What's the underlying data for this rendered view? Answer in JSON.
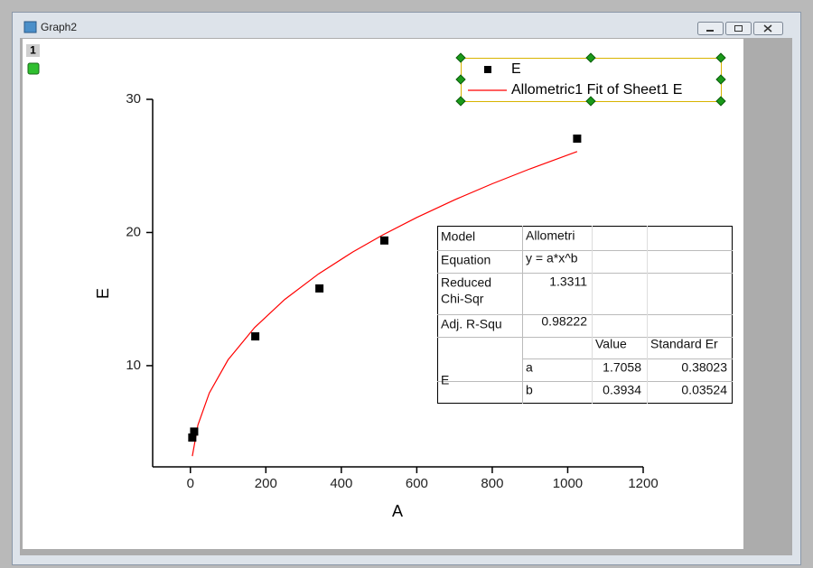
{
  "window": {
    "title": "Graph2",
    "layer": "1"
  },
  "chart_data": {
    "type": "scatter",
    "x_label": "A",
    "y_label": "E",
    "xlim": [
      -100,
      1200
    ],
    "xticks": [
      0,
      200,
      400,
      600,
      800,
      1000,
      1200
    ],
    "ylim": [
      2.4,
      30
    ],
    "yticks": [
      10,
      20,
      30
    ],
    "series": [
      {
        "name": "E",
        "color": "#000000",
        "marker": "square",
        "x": [
          5,
          10,
          172,
          342,
          514,
          1025
        ],
        "values": [
          4.6,
          5.05,
          12.2,
          15.8,
          19.4,
          27.05
        ]
      },
      {
        "name": "Allometric1 Fit of Sheet1 E",
        "color": "#ff0000",
        "marker": "line",
        "x": [
          5,
          20,
          50,
          100,
          170,
          250,
          340,
          430,
          510,
          600,
          700,
          800,
          900,
          1025
        ],
        "values": [
          3.21,
          5.54,
          7.95,
          10.44,
          12.86,
          14.97,
          16.9,
          18.53,
          19.82,
          21.13,
          22.45,
          23.66,
          24.78,
          26.08
        ]
      }
    ]
  },
  "fit_table": {
    "model": {
      "label": "Model",
      "value": "Allometri"
    },
    "equation": {
      "label": "Equation",
      "value": "y = a*x^b"
    },
    "chi": {
      "label": [
        "Reduced",
        "Chi-Sqr"
      ],
      "value": 1.3311
    },
    "r2": {
      "label": "Adj. R-Squ",
      "value": 0.98222
    },
    "header": [
      "Value",
      "Standard Er"
    ],
    "param_group": "E",
    "params": [
      [
        "a",
        1.7058,
        0.38023
      ],
      [
        "b",
        0.3934,
        0.03524
      ]
    ]
  }
}
